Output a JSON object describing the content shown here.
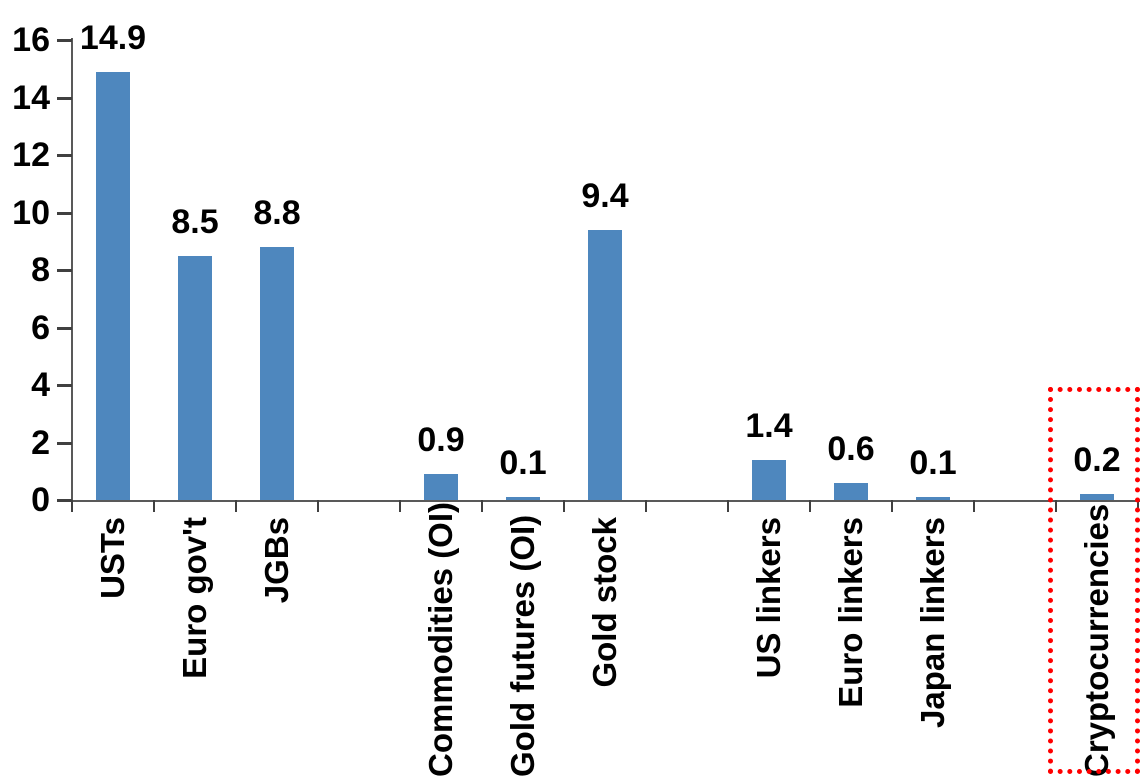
{
  "chart_data": {
    "type": "bar",
    "title": "",
    "xlabel": "",
    "ylabel": "",
    "categories": [
      "USTs",
      "Euro gov't",
      "JGBs",
      "",
      "Commodities (OI)",
      "Gold futures (OI)",
      "Gold stock",
      "",
      "US linkers",
      "Euro linkers",
      "Japan linkers",
      "",
      "Cryptocurrencies"
    ],
    "values": [
      14.9,
      8.5,
      8.8,
      null,
      0.9,
      0.1,
      9.4,
      null,
      1.4,
      0.6,
      0.1,
      null,
      0.2
    ],
    "data_labels": [
      "14.9",
      "8.5",
      "8.8",
      "",
      "0.9",
      "0.1",
      "9.4",
      "",
      "1.4",
      "0.6",
      "0.1",
      "",
      "0.2"
    ],
    "yticks": [
      0,
      2,
      4,
      6,
      8,
      10,
      12,
      14,
      16
    ],
    "ytick_labels": [
      "0",
      "2",
      "4",
      "6",
      "8",
      "10",
      "12",
      "14",
      "16"
    ],
    "ylim": [
      0,
      16
    ],
    "grid": false,
    "legend": "none",
    "bar_color": "#4E87BE",
    "axis_color": "#595959",
    "label_color": "#000000",
    "highlight": {
      "category": "Cryptocurrencies",
      "style": "red-dotted-box",
      "color": "#FF0000"
    }
  }
}
